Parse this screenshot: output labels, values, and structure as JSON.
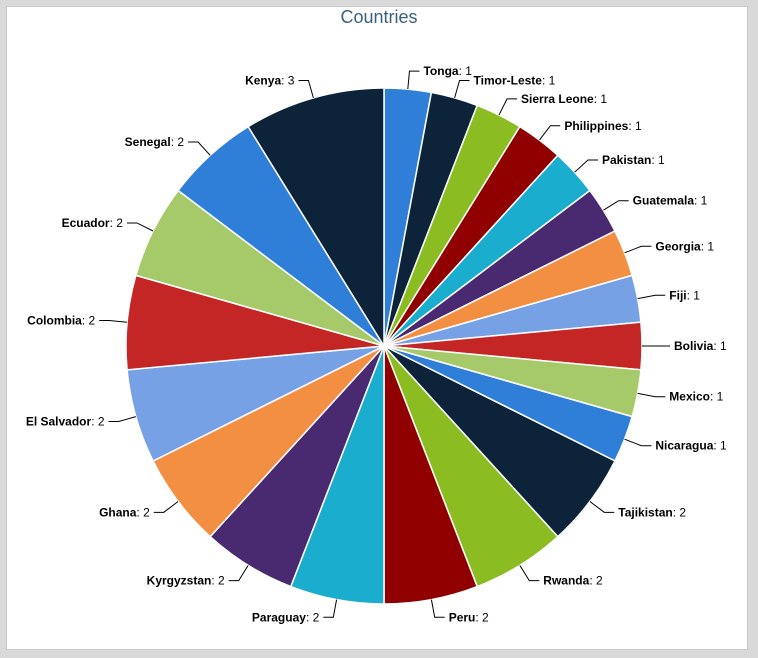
{
  "chart_data": {
    "type": "pie",
    "title": "Countries",
    "categories": [
      "Tonga",
      "Timor-Leste",
      "Sierra Leone",
      "Philippines",
      "Pakistan",
      "Guatemala",
      "Georgia",
      "Fiji",
      "Bolivia",
      "Mexico",
      "Nicaragua",
      "Tajikistan",
      "Rwanda",
      "Peru",
      "Paraguay",
      "Kyrgyzstan",
      "Ghana",
      "El Salvador",
      "Colombia",
      "Ecuador",
      "Senegal",
      "Kenya"
    ],
    "values": [
      1,
      1,
      1,
      1,
      1,
      1,
      1,
      1,
      1,
      1,
      1,
      2,
      2,
      2,
      2,
      2,
      2,
      2,
      2,
      2,
      2,
      3
    ],
    "colors": [
      "#2f7ed8",
      "#0d233a",
      "#8bbc21",
      "#910000",
      "#1aadce",
      "#492970",
      "#f28f43",
      "#77a1e5",
      "#c42525",
      "#a6c96a",
      "#2f7ed8",
      "#0d233a",
      "#8bbc21",
      "#910000",
      "#1aadce",
      "#492970",
      "#f28f43",
      "#77a1e5",
      "#c42525",
      "#a6c96a",
      "#2f7ed8",
      "#0d233a"
    ],
    "label_separator": ": ",
    "legend": "none"
  }
}
